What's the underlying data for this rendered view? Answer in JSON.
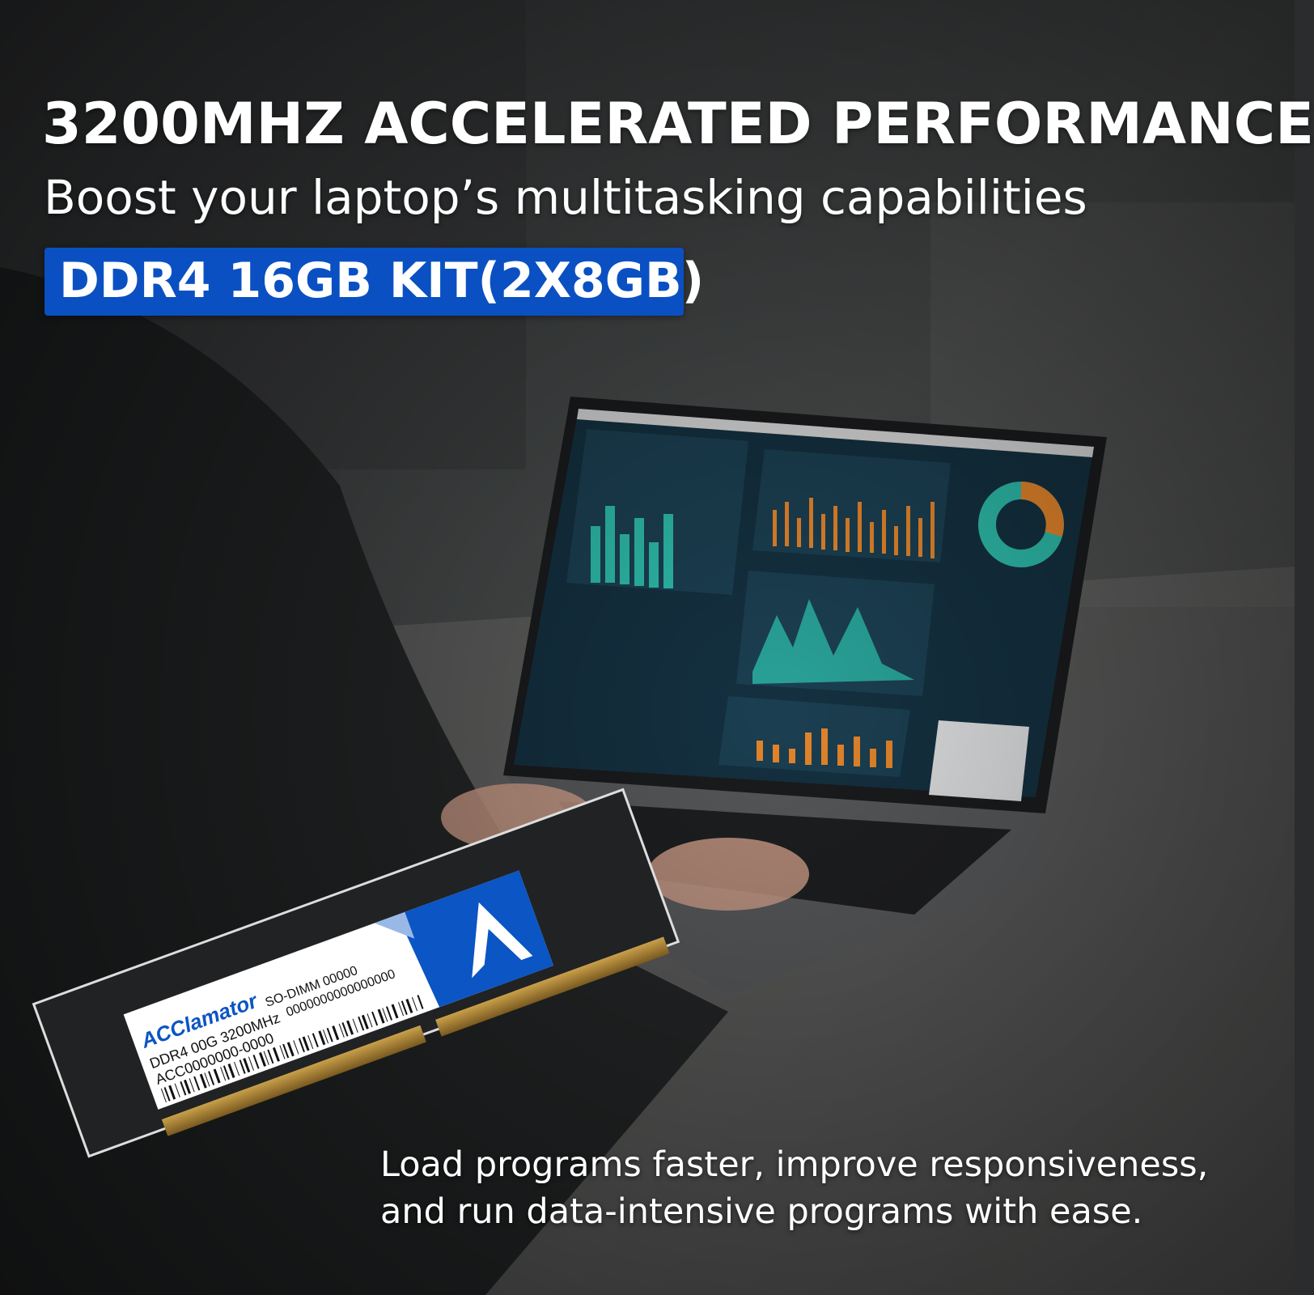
{
  "headline": "3200MHZ ACCELERATED PERFORMANCE",
  "subheadline": "Boost your laptop’s multitasking capabilities",
  "badge": {
    "label": "DDR4 16GB KIT(2X8GB)",
    "color": "#0a50c2"
  },
  "description": {
    "line1": "Load programs faster, improve responsiveness,",
    "line2": "and run data-intensive programs with ease."
  },
  "ram_label": {
    "brand": "ACClamator",
    "line1": "DDR4 00G 3200MHz",
    "line2": "ACC0000000-0000",
    "type": "SO-DIMM 00000",
    "serial": "0000000000000000",
    "logo_color": "#0b55c4"
  },
  "colors": {
    "screen_bg": "#143040",
    "teal": "#2fc3b0",
    "orange": "#f08a2a"
  }
}
